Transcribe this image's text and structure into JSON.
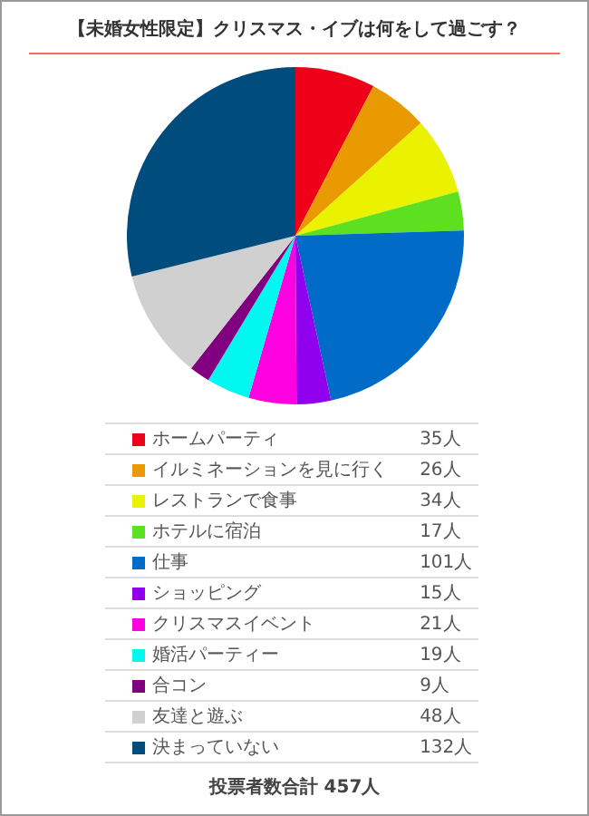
{
  "chart_data": {
    "type": "pie",
    "title": "【未婚女性限定】クリスマス・イブは何をして過ごす？",
    "categories": [
      "ホームパーティ",
      "イルミネーションを見に行く",
      "レストランで食事",
      "ホテルに宿泊",
      "仕事",
      "ショッピング",
      "クリスマスイベント",
      "婚活パーティー",
      "合コン",
      "友達と遊ぶ",
      "決まっていない"
    ],
    "values": [
      35,
      26,
      34,
      17,
      101,
      15,
      21,
      19,
      9,
      48,
      132
    ],
    "value_labels": [
      "35人",
      "26人",
      "34人",
      "17人",
      "101人",
      "15人",
      "21人",
      "19人",
      "9人",
      "48人",
      "132人"
    ],
    "colors": [
      "#ee0018",
      "#e89a00",
      "#eaf200",
      "#5ce020",
      "#006cc8",
      "#9000ee",
      "#ff00e0",
      "#00f8f0",
      "#800080",
      "#d0d0d0",
      "#004c7c"
    ],
    "legend": "bottom",
    "annotations": [
      "投票者数合計 457人"
    ]
  }
}
